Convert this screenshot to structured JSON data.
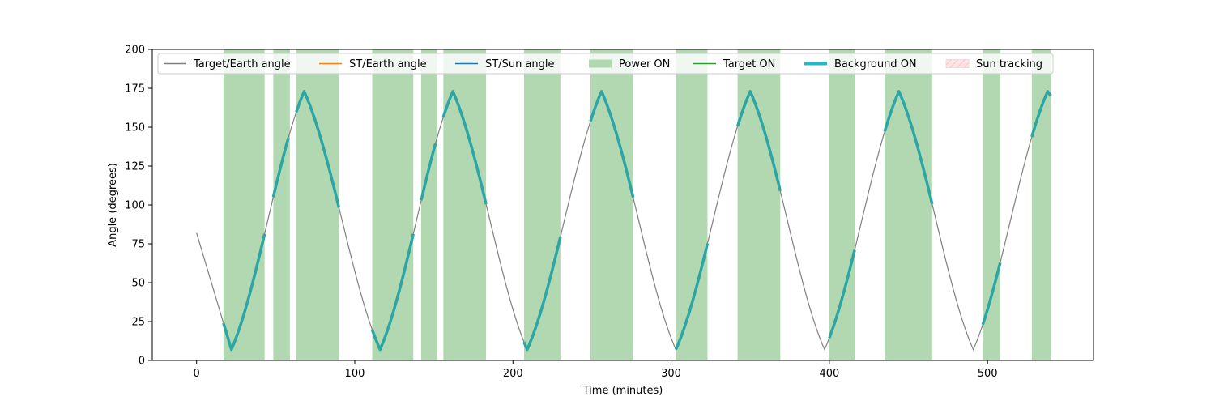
{
  "chart_data": {
    "type": "line",
    "title": "",
    "xlabel": "Time (minutes)",
    "ylabel": "Angle (degrees)",
    "xlim": [
      -28,
      567
    ],
    "ylim": [
      0,
      200
    ],
    "xticks": [
      0,
      100,
      200,
      300,
      400,
      500
    ],
    "yticks": [
      0,
      25,
      50,
      75,
      100,
      125,
      150,
      175,
      200
    ],
    "grid": false,
    "legend_position": "top",
    "legend": [
      {
        "name": "Target/Earth angle",
        "kind": "line",
        "color": "#808080"
      },
      {
        "name": "ST/Earth angle",
        "kind": "line",
        "color": "#ff7f0e"
      },
      {
        "name": "ST/Sun angle",
        "kind": "line",
        "color": "#1f77b4"
      },
      {
        "name": "Power ON",
        "kind": "patch",
        "color": "#b2d8b2"
      },
      {
        "name": "Target ON",
        "kind": "line",
        "color": "#2ca02c"
      },
      {
        "name": "Background ON",
        "kind": "thick-line",
        "color": "#17becf"
      },
      {
        "name": "Sun tracking",
        "kind": "hatched-patch",
        "color": "#ffdddd"
      }
    ],
    "colors": {
      "target_earth": "#808080",
      "background_on": "#2ca6a4",
      "power_on": "#b2d8b2"
    },
    "series": [
      {
        "name": "Target/Earth angle",
        "x": [
          0,
          22,
          68,
          116,
          162,
          209,
          256,
          303,
          350,
          397,
          444,
          491,
          538,
          540
        ],
        "y": [
          82,
          7,
          173,
          7,
          173,
          7,
          173,
          7,
          173,
          7,
          173,
          7,
          173,
          170
        ]
      }
    ],
    "power_on_intervals": [
      [
        17,
        43
      ],
      [
        48.5,
        59
      ],
      [
        63,
        90
      ],
      [
        111,
        137
      ],
      [
        142,
        152
      ],
      [
        156,
        183
      ],
      [
        207,
        230
      ],
      [
        249,
        276
      ],
      [
        303,
        323
      ],
      [
        342,
        369
      ],
      [
        400,
        416
      ],
      [
        435,
        465
      ],
      [
        497,
        508
      ],
      [
        528,
        540
      ]
    ],
    "background_on_intervals": [
      [
        17,
        43
      ],
      [
        48.5,
        58
      ],
      [
        63,
        90
      ],
      [
        111,
        137
      ],
      [
        142,
        151
      ],
      [
        156,
        183
      ],
      [
        207,
        230
      ],
      [
        249,
        276
      ],
      [
        303,
        323
      ],
      [
        342,
        369
      ],
      [
        400,
        416
      ],
      [
        435,
        465
      ],
      [
        497,
        508
      ],
      [
        528,
        540
      ]
    ]
  }
}
